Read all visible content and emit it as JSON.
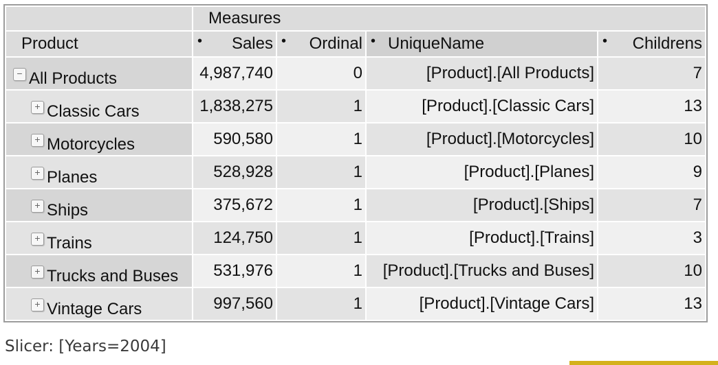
{
  "pivot": {
    "measures_label": "Measures",
    "row_header": "Product",
    "columns": [
      {
        "label": "Sales"
      },
      {
        "label": "Ordinal"
      },
      {
        "label": "UniqueName"
      },
      {
        "label": "Childrens"
      }
    ],
    "rows": [
      {
        "label": "All Products",
        "expander": "−",
        "sales": "4,987,740",
        "ordinal": "0",
        "unique": "[Product].[All Products]",
        "childrens": "7"
      },
      {
        "label": "Classic Cars",
        "expander": "+",
        "sales": "1,838,275",
        "ordinal": "1",
        "unique": "[Product].[Classic Cars]",
        "childrens": "13"
      },
      {
        "label": "Motorcycles",
        "expander": "+",
        "sales": "590,580",
        "ordinal": "1",
        "unique": "[Product].[Motorcycles]",
        "childrens": "10"
      },
      {
        "label": "Planes",
        "expander": "+",
        "sales": "528,928",
        "ordinal": "1",
        "unique": "[Product].[Planes]",
        "childrens": "9"
      },
      {
        "label": "Ships",
        "expander": "+",
        "sales": "375,672",
        "ordinal": "1",
        "unique": "[Product].[Ships]",
        "childrens": "7"
      },
      {
        "label": "Trains",
        "expander": "+",
        "sales": "124,750",
        "ordinal": "1",
        "unique": "[Product].[Trains]",
        "childrens": "3"
      },
      {
        "label": "Trucks and Buses",
        "expander": "+",
        "sales": "531,976",
        "ordinal": "1",
        "unique": "[Product].[Trucks and Buses]",
        "childrens": "10"
      },
      {
        "label": "Vintage Cars",
        "expander": "+",
        "sales": "997,560",
        "ordinal": "1",
        "unique": "[Product].[Vintage Cars]",
        "childrens": "13"
      }
    ]
  },
  "slicer": "Slicer: [Years=2004]",
  "colors": {
    "header_bg": "#dcdcdc",
    "row_dark": "#d6d6d6",
    "row_light": "#e3e3e3",
    "cell_light": "#f0f0f0",
    "accent_bar": "#d4b11c"
  }
}
